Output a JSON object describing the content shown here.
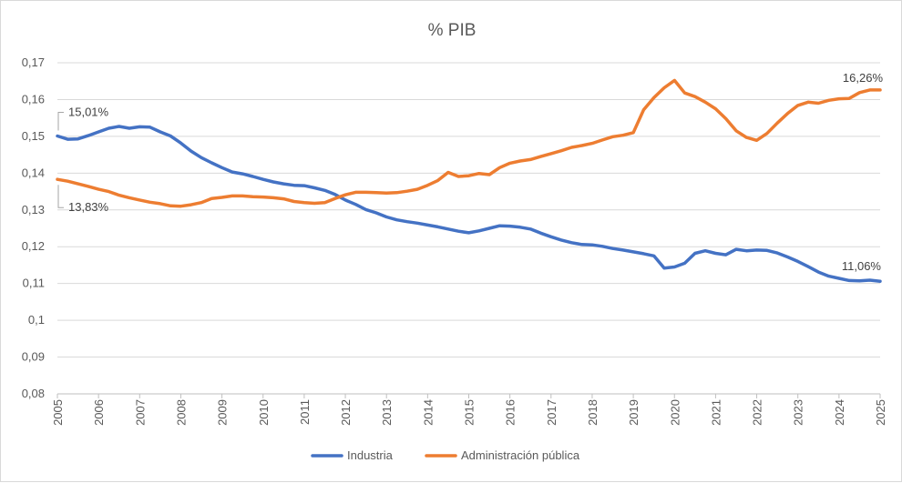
{
  "chart_data": {
    "type": "line",
    "title": "% PIB",
    "ylim": [
      0.08,
      0.17
    ],
    "y_ticks": [
      "0,08",
      "0,09",
      "0,1",
      "0,11",
      "0,12",
      "0,13",
      "0,14",
      "0,15",
      "0,16",
      "0,17"
    ],
    "y_tick_values": [
      0.08,
      0.09,
      0.1,
      0.11,
      0.12,
      0.13,
      0.14,
      0.15,
      0.16,
      0.17
    ],
    "x_range": [
      2005,
      2025
    ],
    "x_ticks": [
      "2005",
      "2006",
      "2007",
      "2008",
      "2009",
      "2010",
      "2011",
      "2012",
      "2013",
      "2014",
      "2015",
      "2016",
      "2017",
      "2018",
      "2019",
      "2020",
      "2021",
      "2022",
      "2023",
      "2024",
      "2025"
    ],
    "grid": true,
    "legend_position": "bottom",
    "series": [
      {
        "name": "Industria",
        "color": "#4472C4",
        "x": [
          2005,
          2005.25,
          2005.5,
          2005.75,
          2006,
          2006.25,
          2006.5,
          2006.75,
          2007,
          2007.25,
          2007.5,
          2007.75,
          2008,
          2008.25,
          2008.5,
          2008.75,
          2009,
          2009.25,
          2009.5,
          2009.75,
          2010,
          2010.25,
          2010.5,
          2010.75,
          2011,
          2011.25,
          2011.5,
          2011.75,
          2012,
          2012.25,
          2012.5,
          2012.75,
          2013,
          2013.25,
          2013.5,
          2013.75,
          2014,
          2014.25,
          2014.5,
          2014.75,
          2015,
          2015.25,
          2015.5,
          2015.75,
          2016,
          2016.25,
          2016.5,
          2016.75,
          2017,
          2017.25,
          2017.5,
          2017.75,
          2018,
          2018.25,
          2018.5,
          2018.75,
          2019,
          2019.25,
          2019.5,
          2019.75,
          2020,
          2020.25,
          2020.5,
          2020.75,
          2021,
          2021.25,
          2021.5,
          2021.75,
          2022,
          2022.25,
          2022.5,
          2022.75,
          2023,
          2023.25,
          2023.5,
          2023.75,
          2024,
          2024.25,
          2024.5,
          2024.75,
          2025
        ],
        "values": [
          0.1501,
          0.1492,
          0.1493,
          0.1502,
          0.1512,
          0.1522,
          0.1527,
          0.1522,
          0.1526,
          0.1525,
          0.1512,
          0.1501,
          0.1482,
          0.146,
          0.1442,
          0.1428,
          0.1415,
          0.1403,
          0.1398,
          0.1391,
          0.1383,
          0.1376,
          0.1371,
          0.1367,
          0.1366,
          0.136,
          0.1353,
          0.1342,
          0.1327,
          0.1315,
          0.1301,
          0.1292,
          0.1281,
          0.1273,
          0.1268,
          0.1264,
          0.1259,
          0.1254,
          0.1248,
          0.1242,
          0.1238,
          0.1243,
          0.125,
          0.1257,
          0.1256,
          0.1253,
          0.1248,
          0.1237,
          0.1227,
          0.1218,
          0.1211,
          0.1206,
          0.1205,
          0.1201,
          0.1195,
          0.1191,
          0.1186,
          0.1181,
          0.1175,
          0.1142,
          0.1145,
          0.1155,
          0.1182,
          0.1189,
          0.1182,
          0.1178,
          0.1193,
          0.1189,
          0.1191,
          0.119,
          0.1183,
          0.1172,
          0.116,
          0.1146,
          0.1131,
          0.112,
          0.1114,
          0.1108,
          0.1107,
          0.1109,
          0.1106
        ]
      },
      {
        "name": "Administración pública",
        "color": "#ED7D31",
        "x": [
          2005,
          2005.25,
          2005.5,
          2005.75,
          2006,
          2006.25,
          2006.5,
          2006.75,
          2007,
          2007.25,
          2007.5,
          2007.75,
          2008,
          2008.25,
          2008.5,
          2008.75,
          2009,
          2009.25,
          2009.5,
          2009.75,
          2010,
          2010.25,
          2010.5,
          2010.75,
          2011,
          2011.25,
          2011.5,
          2011.75,
          2012,
          2012.25,
          2012.5,
          2012.75,
          2013,
          2013.25,
          2013.5,
          2013.75,
          2014,
          2014.25,
          2014.5,
          2014.75,
          2015,
          2015.25,
          2015.5,
          2015.75,
          2016,
          2016.25,
          2016.5,
          2016.75,
          2017,
          2017.25,
          2017.5,
          2017.75,
          2018,
          2018.25,
          2018.5,
          2018.75,
          2019,
          2019.25,
          2019.5,
          2019.75,
          2020,
          2020.25,
          2020.5,
          2020.75,
          2021,
          2021.25,
          2021.5,
          2021.75,
          2022,
          2022.25,
          2022.5,
          2022.75,
          2023,
          2023.25,
          2023.5,
          2023.75,
          2024,
          2024.25,
          2024.5,
          2024.75,
          2025
        ],
        "values": [
          0.1383,
          0.1378,
          0.1371,
          0.1364,
          0.1356,
          0.135,
          0.134,
          0.1333,
          0.1327,
          0.1321,
          0.1317,
          0.1311,
          0.131,
          0.1314,
          0.132,
          0.1331,
          0.1334,
          0.1338,
          0.1338,
          0.1336,
          0.1335,
          0.1333,
          0.133,
          0.1323,
          0.132,
          0.1318,
          0.132,
          0.1331,
          0.1341,
          0.1348,
          0.1348,
          0.1347,
          0.1346,
          0.1347,
          0.1351,
          0.1356,
          0.1367,
          0.138,
          0.1402,
          0.1391,
          0.1393,
          0.1399,
          0.1396,
          0.1415,
          0.1427,
          0.1433,
          0.1437,
          0.1445,
          0.1453,
          0.1461,
          0.147,
          0.1475,
          0.1481,
          0.149,
          0.1499,
          0.1503,
          0.151,
          0.1572,
          0.1605,
          0.1632,
          0.1652,
          0.1618,
          0.1608,
          0.1593,
          0.1575,
          0.1548,
          0.1515,
          0.1497,
          0.1489,
          0.1508,
          0.1536,
          0.1562,
          0.1584,
          0.1593,
          0.159,
          0.1598,
          0.1602,
          0.1603,
          0.1619,
          0.1626,
          0.1626
        ]
      }
    ],
    "annotations": [
      {
        "series": "Industria",
        "at": "start",
        "text": "15,01%"
      },
      {
        "series": "Administración pública",
        "at": "start",
        "text": "13,83%"
      },
      {
        "series": "Industria",
        "at": "end",
        "text": "11,06%"
      },
      {
        "series": "Administración pública",
        "at": "end",
        "text": "16,26%"
      }
    ]
  }
}
